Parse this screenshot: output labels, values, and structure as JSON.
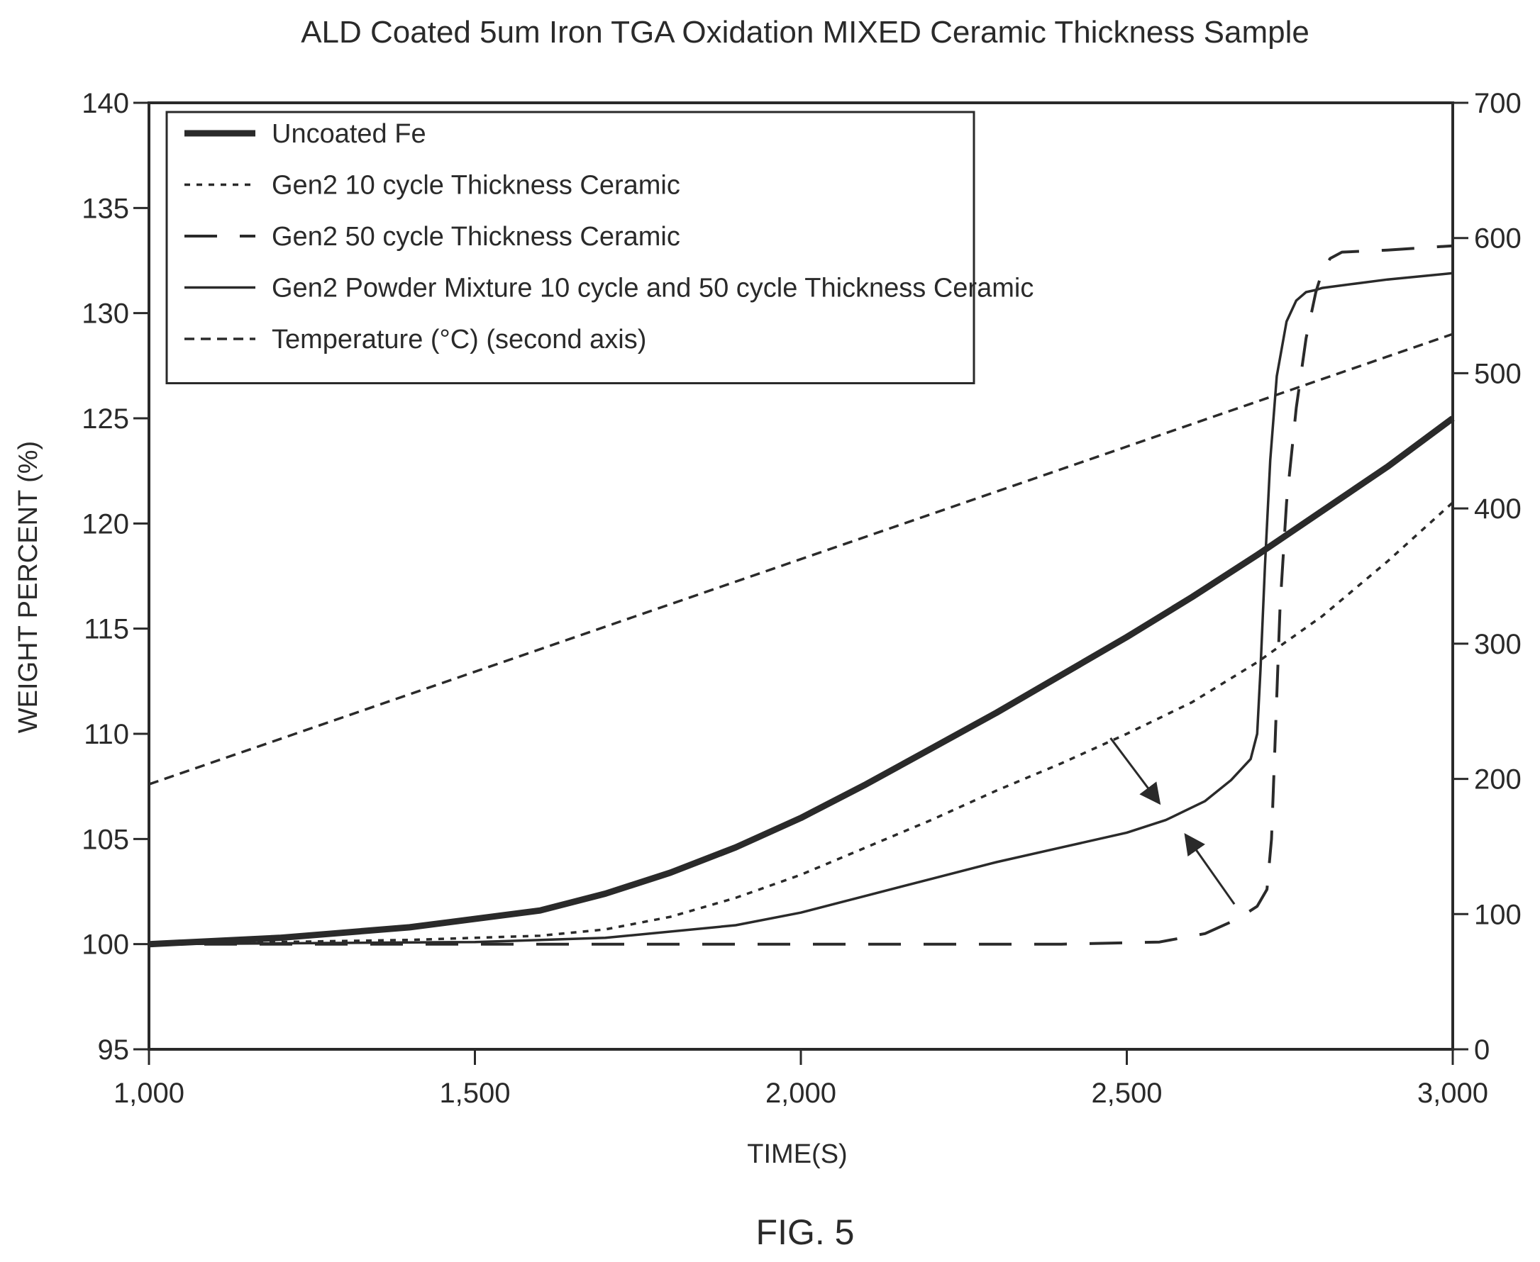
{
  "figure_label": "FIG. 5",
  "colors": {
    "ink": "#2a2a2a",
    "background": "#ffffff"
  },
  "chart_data": {
    "type": "line",
    "title": "ALD Coated 5um Iron TGA Oxidation MIXED Ceramic Thickness Sample",
    "xlabel": "TIME(S)",
    "ylabel": "WEIGHT PERCENT (%)",
    "y2label": "",
    "xlim": [
      1000,
      3000
    ],
    "ylim": [
      95,
      140
    ],
    "y2lim": [
      0,
      700
    ],
    "x_ticks": [
      1000,
      1500,
      2000,
      2500,
      3000
    ],
    "x_tick_labels": [
      "1,000",
      "1,500",
      "2,000",
      "2,500",
      "3,000"
    ],
    "y_ticks": [
      95,
      100,
      105,
      110,
      115,
      120,
      125,
      130,
      135,
      140
    ],
    "y_tick_labels": [
      "95",
      "100",
      "105",
      "110",
      "115",
      "120",
      "125",
      "130",
      "135",
      "140"
    ],
    "y2_ticks": [
      0,
      100,
      200,
      300,
      400,
      500,
      600,
      700
    ],
    "y2_tick_labels": [
      "0",
      "100",
      "200",
      "300",
      "400",
      "500",
      "600",
      "700"
    ],
    "grid": false,
    "legend_position": "top-left",
    "series": [
      {
        "name": "Uncoated Fe",
        "style": "thick-solid",
        "axis": "left",
        "x": [
          1000,
          1200,
          1400,
          1600,
          1700,
          1800,
          1900,
          2000,
          2100,
          2200,
          2300,
          2400,
          2500,
          2600,
          2700,
          2800,
          2900,
          3000
        ],
        "y": [
          100,
          100.3,
          100.8,
          101.6,
          102.4,
          103.4,
          104.6,
          106.0,
          107.6,
          109.3,
          111.0,
          112.8,
          114.6,
          116.5,
          118.5,
          120.6,
          122.7,
          125.0
        ]
      },
      {
        "name": "Gen2 10 cycle Thickness Ceramic",
        "style": "dotted",
        "axis": "left",
        "x": [
          1000,
          1400,
          1600,
          1700,
          1800,
          1900,
          2000,
          2100,
          2200,
          2300,
          2400,
          2500,
          2600,
          2700,
          2800,
          2900,
          3000
        ],
        "y": [
          100,
          100.2,
          100.4,
          100.7,
          101.3,
          102.2,
          103.3,
          104.6,
          105.9,
          107.3,
          108.6,
          110.0,
          111.5,
          113.4,
          115.6,
          118.2,
          121.0
        ]
      },
      {
        "name": "Gen2 50 cycle Thickness Ceramic",
        "style": "long-dash",
        "axis": "left",
        "x": [
          1000,
          1500,
          2000,
          2400,
          2550,
          2620,
          2670,
          2700,
          2715,
          2722,
          2728,
          2735,
          2745,
          2760,
          2775,
          2790,
          2800,
          2812,
          2830,
          2900,
          3000
        ],
        "y": [
          100,
          100,
          100,
          100,
          100.1,
          100.5,
          101.2,
          101.8,
          102.6,
          105,
          110,
          116,
          121,
          125.5,
          128.8,
          131,
          132,
          132.6,
          132.9,
          133.0,
          133.2
        ]
      },
      {
        "name": "Gen2 Powder Mixture 10 cycle and 50 cycle Thickness Ceramic",
        "style": "thin-solid",
        "axis": "left",
        "x": [
          1000,
          1500,
          1700,
          1900,
          2000,
          2100,
          2200,
          2300,
          2400,
          2500,
          2560,
          2620,
          2660,
          2690,
          2700,
          2705,
          2712,
          2720,
          2730,
          2745,
          2760,
          2775,
          2790,
          2800,
          2850,
          2900,
          3000
        ],
        "y": [
          100,
          100.1,
          100.3,
          100.9,
          101.5,
          102.3,
          103.1,
          103.9,
          104.6,
          105.3,
          105.9,
          106.8,
          107.8,
          108.8,
          110,
          113,
          118,
          123,
          127,
          129.6,
          130.6,
          131.0,
          131.1,
          131.2,
          131.4,
          131.6,
          131.9
        ]
      },
      {
        "name": "Temperature (°C) (second axis)",
        "style": "short-dash",
        "axis": "right",
        "x": [
          1000,
          3000
        ],
        "y": [
          196,
          529
        ]
      }
    ],
    "annotations": [
      {
        "type": "arrow",
        "from": [
          2475,
          109.8
        ],
        "to": [
          2550,
          106.7
        ]
      },
      {
        "type": "arrow",
        "from": [
          2665,
          101.9
        ],
        "to": [
          2590,
          105.2
        ]
      }
    ]
  }
}
